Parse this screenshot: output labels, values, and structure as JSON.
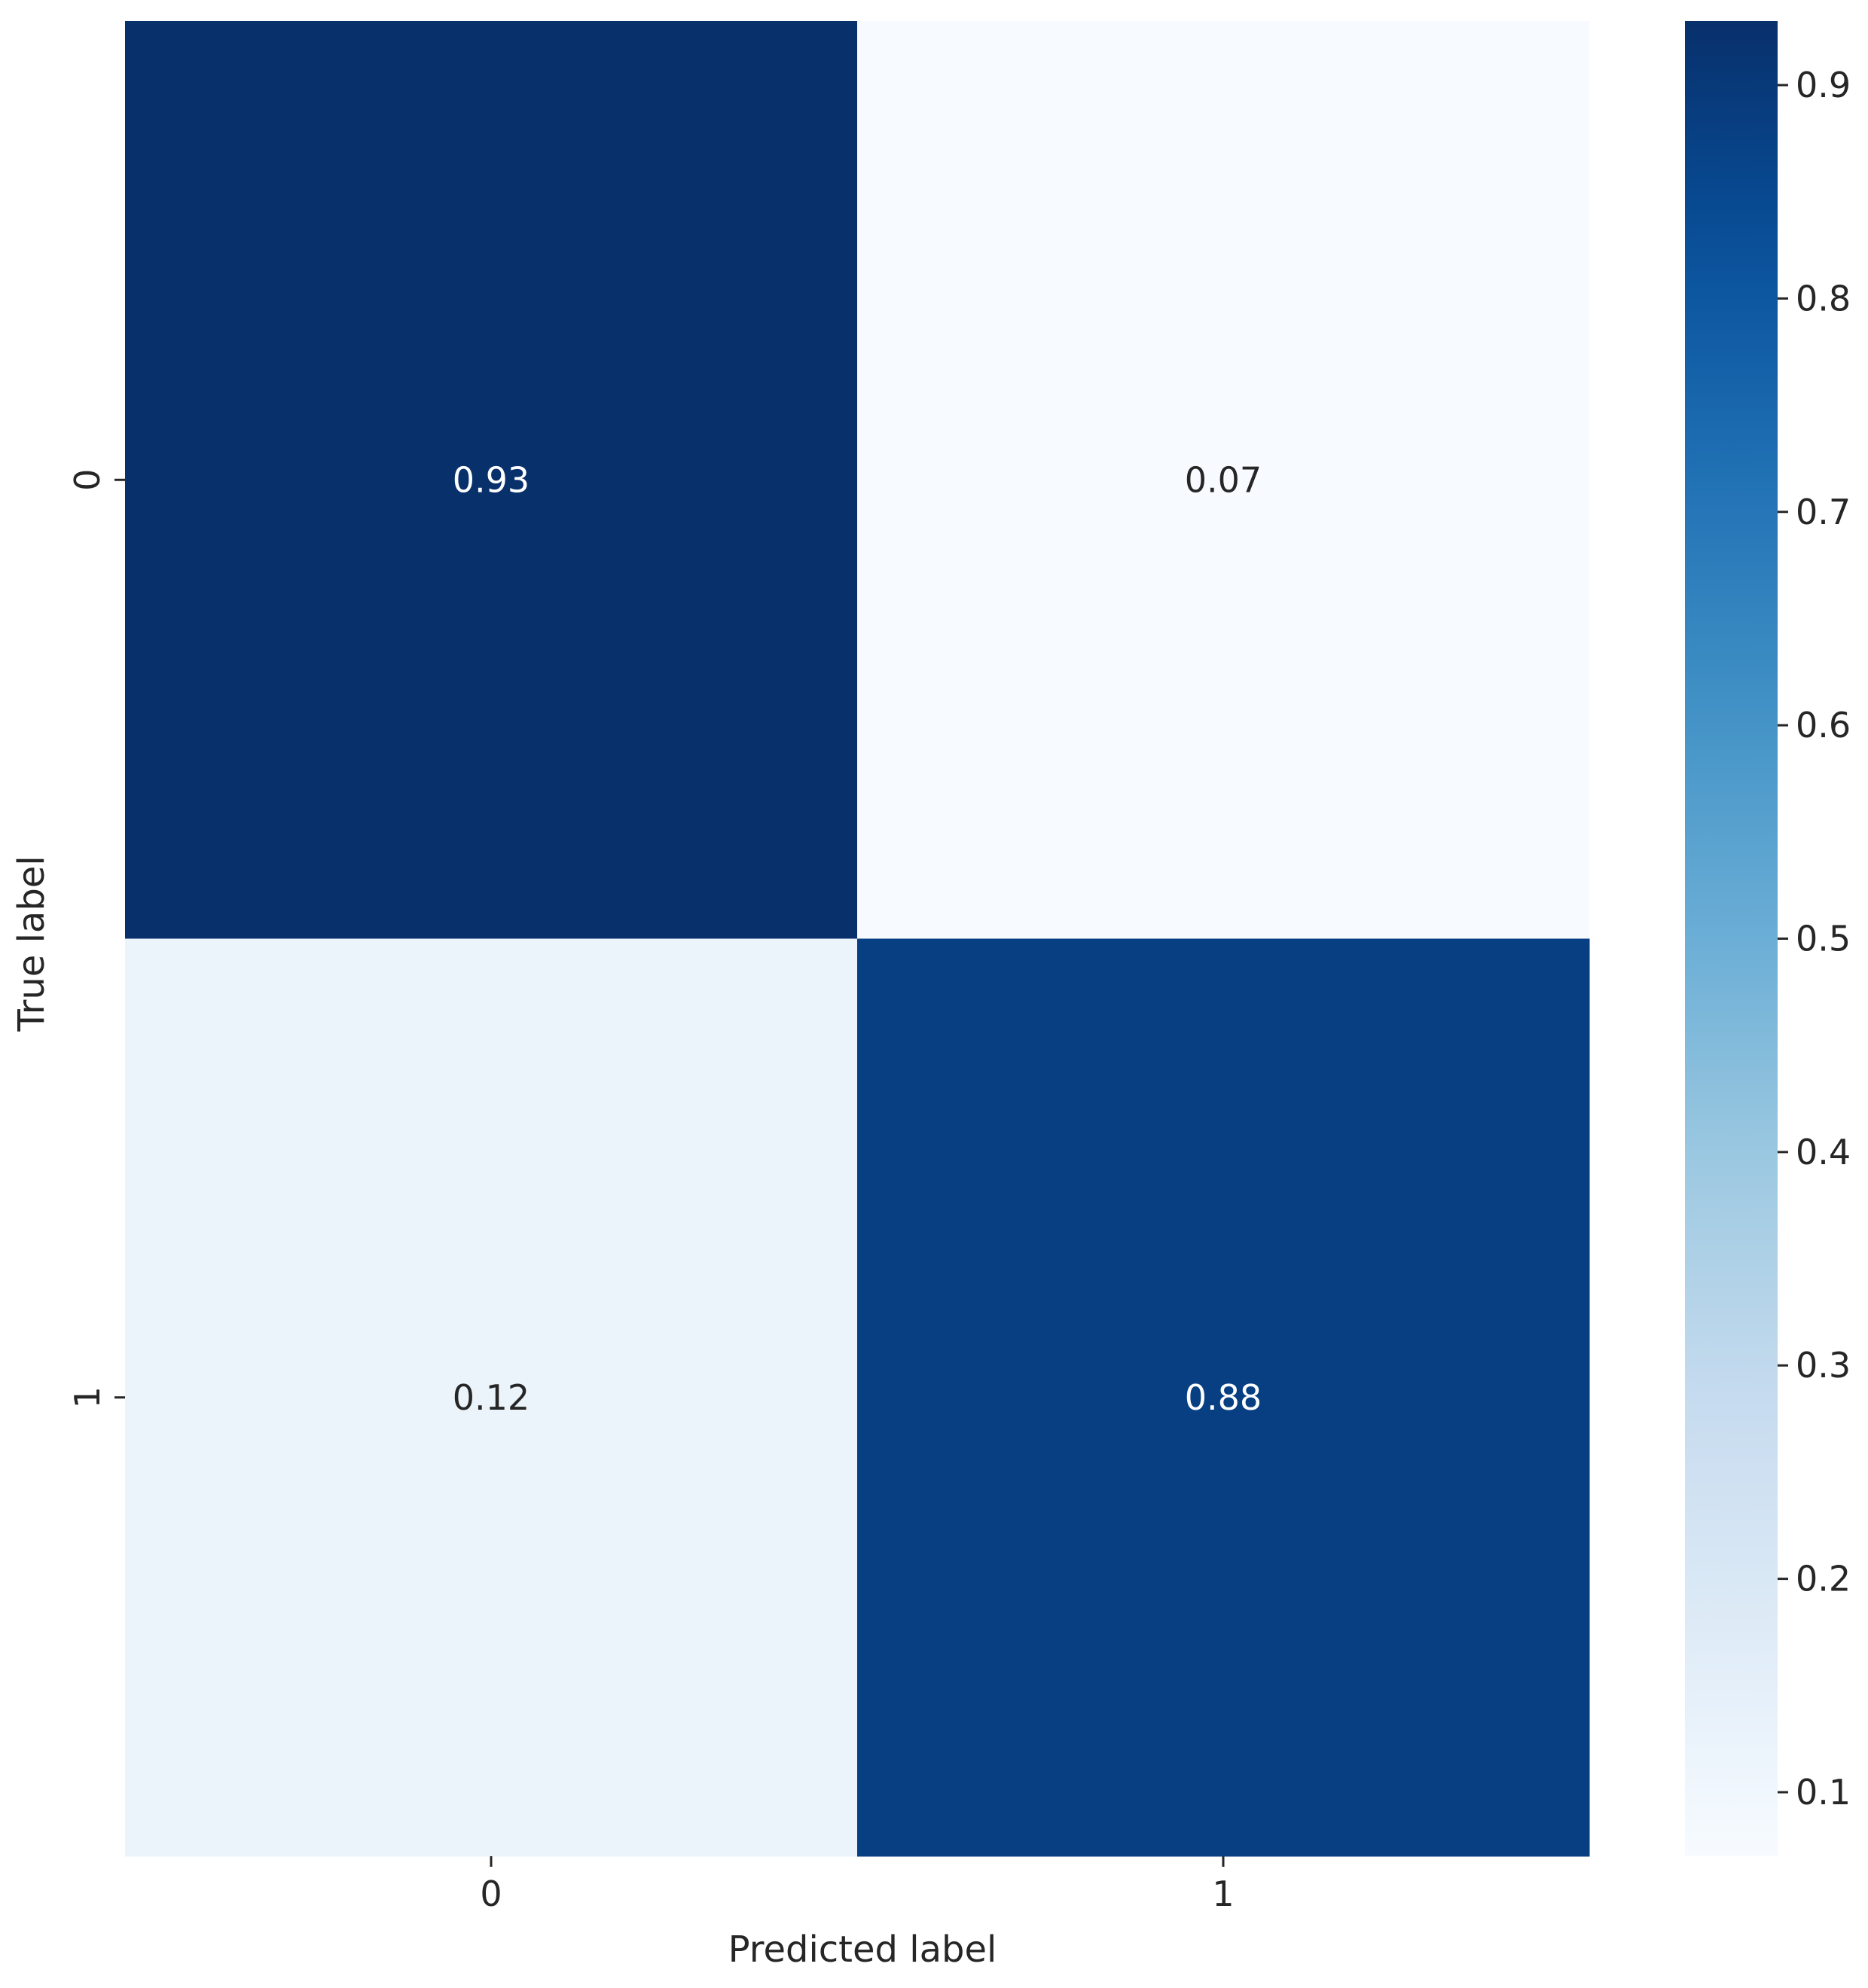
{
  "chart_data": {
    "type": "heatmap",
    "xlabel": "Predicted label",
    "ylabel": "True label",
    "x_categories": [
      "0",
      "1"
    ],
    "y_categories": [
      "0",
      "1"
    ],
    "values": [
      [
        0.93,
        0.07
      ],
      [
        0.12,
        0.88
      ]
    ],
    "value_labels": [
      [
        "0.93",
        "0.07"
      ],
      [
        "0.12",
        "0.88"
      ]
    ],
    "colormap": "Blues",
    "colorbar": {
      "range": [
        0.07,
        0.93
      ],
      "ticks": [
        0.1,
        0.2,
        0.3,
        0.4,
        0.5,
        0.6,
        0.7,
        0.8,
        0.9
      ],
      "tick_labels": [
        "0.1",
        "0.2",
        "0.3",
        "0.4",
        "0.5",
        "0.6",
        "0.7",
        "0.8",
        "0.9"
      ]
    },
    "annotation_colors": {
      "on_dark": "#ffffff",
      "on_light": "#262626"
    }
  }
}
